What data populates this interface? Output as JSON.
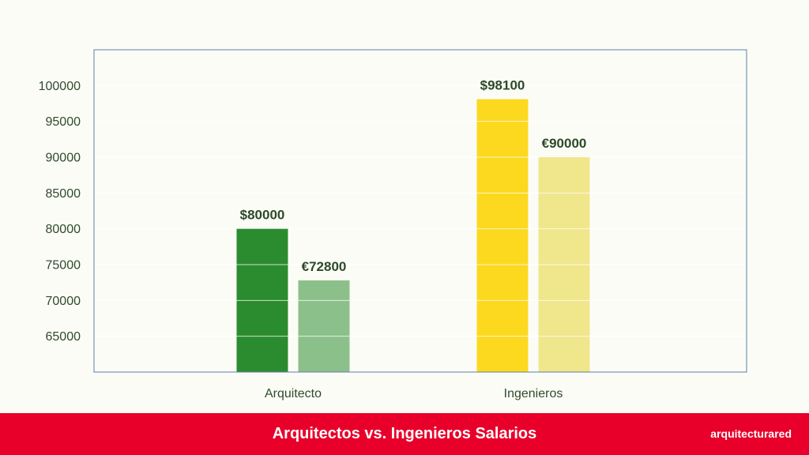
{
  "chart_data": {
    "type": "bar",
    "title": "",
    "xlabel": "",
    "ylabel": "",
    "categories": [
      "Arquitecto",
      "Ingenieros"
    ],
    "ylim": [
      60000,
      105000
    ],
    "yticks": [
      65000,
      70000,
      75000,
      80000,
      85000,
      90000,
      95000,
      100000
    ],
    "grid": true,
    "series": [
      {
        "values": [
          80000,
          98100
        ],
        "data_labels": [
          "$80000",
          "$98100"
        ],
        "colors": [
          "#2b8c2f",
          "#fcd91f"
        ]
      },
      {
        "values": [
          72800,
          90000
        ],
        "data_labels": [
          "€72800",
          "€90000"
        ],
        "colors": [
          "#8cc08a",
          "#f0e68c"
        ]
      }
    ]
  },
  "footer": {
    "title": "Arquitectos vs. Ingenieros Salarios",
    "brand": "arquitecturared",
    "background": "#e8002a"
  }
}
